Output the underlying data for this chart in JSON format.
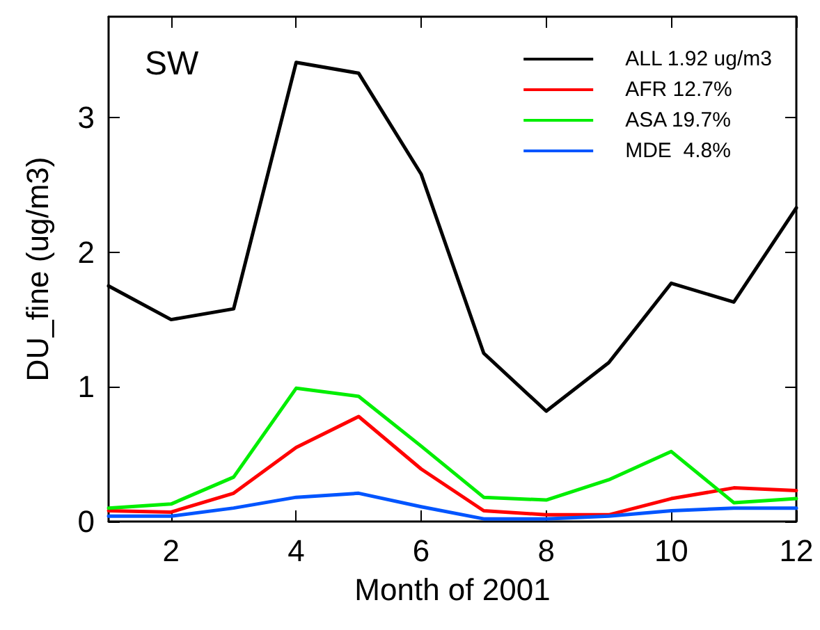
{
  "chart_data": {
    "type": "line",
    "xlabel": "Month of 2001",
    "ylabel": "DU_fine (ug/m3)",
    "annotations": [
      "SW"
    ],
    "x": [
      1,
      2,
      3,
      4,
      5,
      6,
      7,
      8,
      9,
      10,
      11,
      12
    ],
    "series": [
      {
        "name": "ALL 1.92 ug/m3",
        "color": "#000000",
        "values": [
          1.75,
          1.5,
          1.58,
          3.41,
          3.33,
          2.58,
          1.25,
          0.82,
          1.18,
          1.77,
          1.63,
          2.33
        ]
      },
      {
        "name": "AFR 12.7%",
        "color": "#ff0000",
        "values": [
          0.08,
          0.07,
          0.21,
          0.55,
          0.78,
          0.39,
          0.08,
          0.05,
          0.05,
          0.17,
          0.25,
          0.23
        ]
      },
      {
        "name": "ASA 19.7%",
        "color": "#00ee00",
        "values": [
          0.1,
          0.13,
          0.33,
          0.99,
          0.93,
          0.56,
          0.18,
          0.16,
          0.31,
          0.52,
          0.14,
          0.17
        ]
      },
      {
        "name": "MDE  4.8%",
        "color": "#0055ff",
        "values": [
          0.04,
          0.04,
          0.1,
          0.18,
          0.21,
          0.11,
          0.02,
          0.02,
          0.04,
          0.08,
          0.1,
          0.1
        ]
      }
    ],
    "xlim": [
      1,
      12
    ],
    "xticks": [
      2,
      4,
      6,
      8,
      10,
      12
    ],
    "ylim": [
      0,
      3.75
    ],
    "yticks": [
      0,
      1,
      2,
      3
    ],
    "grid": false,
    "legend": "top right",
    "marker": "none",
    "line_style": "solid"
  }
}
